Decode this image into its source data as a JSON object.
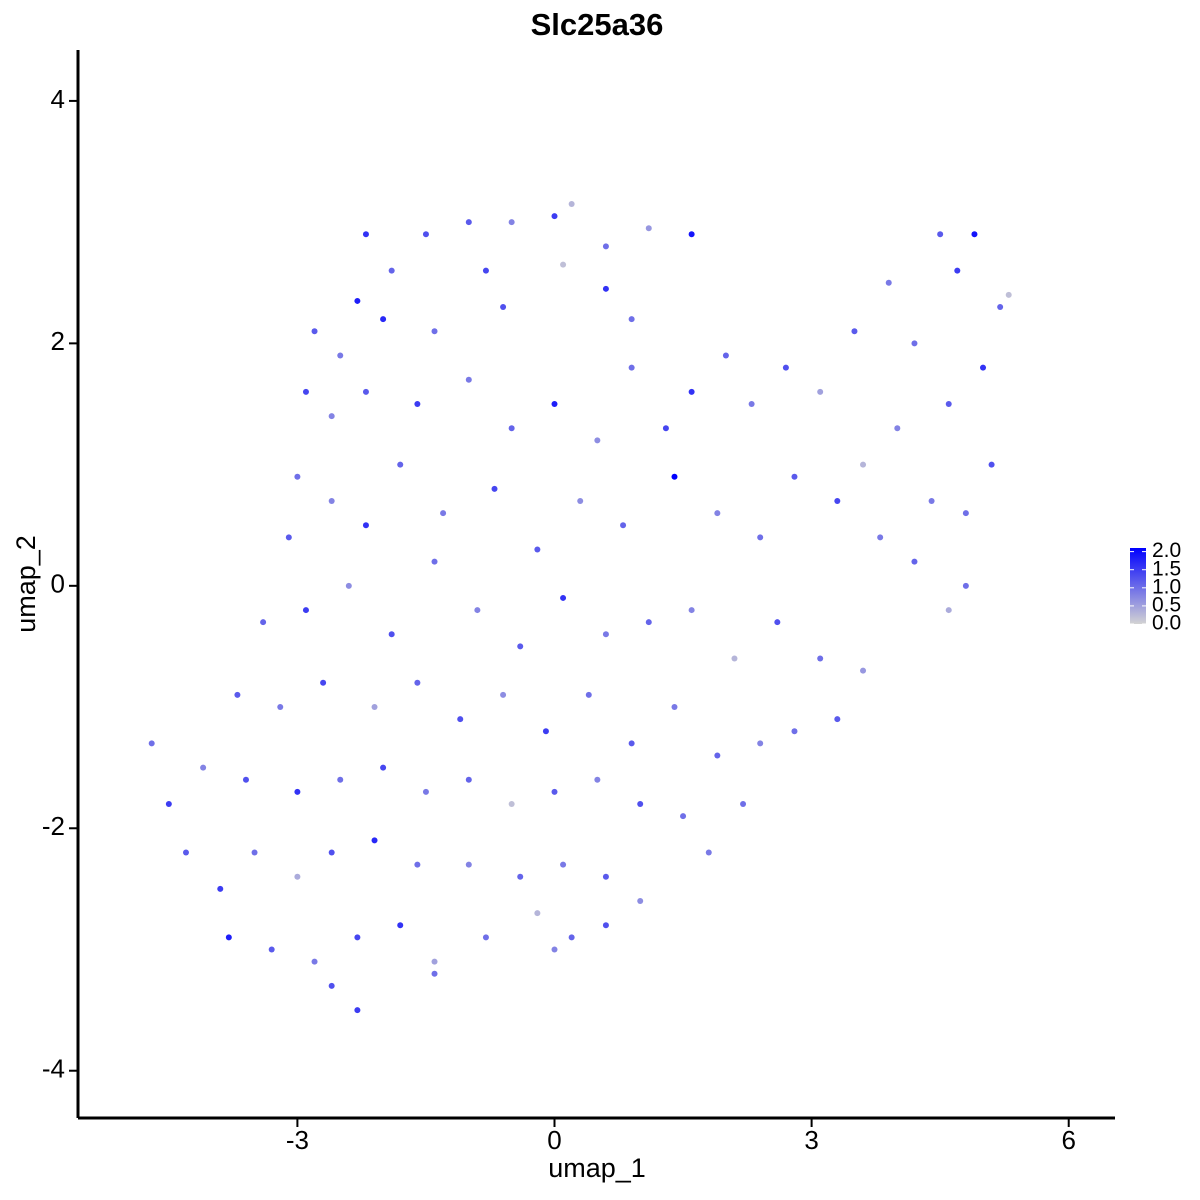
{
  "chart_data": {
    "type": "scatter",
    "title": "Slc25a36",
    "xlabel": "umap_1",
    "ylabel": "umap_2",
    "xlim": [
      -5.56,
      6.54
    ],
    "ylim": [
      -4.39,
      4.42
    ],
    "xticks": [
      -3,
      0,
      3,
      6
    ],
    "yticks": [
      -4,
      -2,
      0,
      2,
      4
    ],
    "low_color": "#d3d3d3",
    "high_color": "#0000ff",
    "colorlim": [
      0,
      2.1
    ],
    "colorticks": [
      {
        "value": 0,
        "label": "0.0"
      },
      {
        "value": 0.5,
        "label": "0.5"
      },
      {
        "value": 1,
        "label": "1.0"
      },
      {
        "value": 1.5,
        "label": "1.5"
      },
      {
        "value": 2,
        "label": "2.0"
      }
    ],
    "x": [
      -2.2,
      -1.5,
      -1.0,
      -0.5,
      0.0,
      0.2,
      0.6,
      1.1,
      1.6,
      0.1,
      -0.8,
      -1.9,
      -2.3,
      -2.8,
      -2.5,
      -2.0,
      -1.4,
      -0.6,
      0.6,
      0.9,
      -2.9,
      -2.6,
      -2.2,
      -1.6,
      -1.0,
      -0.5,
      0.0,
      0.5,
      0.9,
      1.3,
      1.6,
      2.0,
      2.3,
      2.7,
      3.1,
      3.5,
      3.9,
      4.2,
      4.5,
      4.7,
      4.9,
      5.2,
      5.3,
      5.0,
      4.6,
      4.0,
      3.6,
      5.1,
      4.8,
      4.4,
      -3.0,
      -3.1,
      -2.6,
      -2.2,
      -1.8,
      -1.3,
      -0.7,
      -0.2,
      0.3,
      0.8,
      1.4,
      1.9,
      2.4,
      2.8,
      3.3,
      3.8,
      4.2,
      4.8,
      4.6,
      -3.4,
      -2.9,
      -2.4,
      -1.9,
      -1.4,
      -0.9,
      -0.4,
      0.1,
      0.6,
      1.1,
      1.6,
      2.1,
      2.6,
      3.1,
      3.6,
      3.3,
      2.8,
      -3.7,
      -3.2,
      -2.7,
      -2.1,
      -1.6,
      -1.1,
      -0.6,
      -0.1,
      0.4,
      0.9,
      1.4,
      1.9,
      2.4,
      2.2,
      -4.7,
      -4.5,
      -4.1,
      -3.6,
      -3.0,
      -2.5,
      -2.0,
      -1.5,
      -1.0,
      -0.5,
      0.0,
      0.5,
      1.0,
      1.5,
      1.8,
      -4.3,
      -3.9,
      -3.5,
      -3.0,
      -2.6,
      -2.1,
      -1.6,
      -1.0,
      -0.4,
      0.1,
      0.6,
      1.0,
      -3.8,
      -3.3,
      -2.8,
      -2.3,
      -1.8,
      -1.4,
      -0.8,
      -0.2,
      0.2,
      0.6,
      -2.6,
      -2.3,
      -1.4,
      0.0
    ],
    "y": [
      2.9,
      2.9,
      3.0,
      3.0,
      3.05,
      3.15,
      2.8,
      2.95,
      2.9,
      2.65,
      2.6,
      2.6,
      2.35,
      2.1,
      1.9,
      2.2,
      2.1,
      2.3,
      2.45,
      2.2,
      1.6,
      1.4,
      1.6,
      1.5,
      1.7,
      1.3,
      1.5,
      1.2,
      1.8,
      1.3,
      1.6,
      1.9,
      1.5,
      1.8,
      1.6,
      2.1,
      2.5,
      2.0,
      2.9,
      2.6,
      2.9,
      2.3,
      2.4,
      1.8,
      1.5,
      1.3,
      1.0,
      1.0,
      0.6,
      0.7,
      0.9,
      0.4,
      0.7,
      0.5,
      1.0,
      0.6,
      0.8,
      0.3,
      0.7,
      0.5,
      0.9,
      0.6,
      0.4,
      0.9,
      0.7,
      0.4,
      0.2,
      0.0,
      -0.2,
      -0.3,
      -0.2,
      0.0,
      -0.4,
      0.2,
      -0.2,
      -0.5,
      -0.1,
      -0.4,
      -0.3,
      -0.2,
      -0.6,
      -0.3,
      -0.6,
      -0.7,
      -1.1,
      -1.2,
      -0.9,
      -1.0,
      -0.8,
      -1.0,
      -0.8,
      -1.1,
      -0.9,
      -1.2,
      -0.9,
      -1.3,
      -1.0,
      -1.4,
      -1.3,
      -1.8,
      -1.3,
      -1.8,
      -1.5,
      -1.6,
      -1.7,
      -1.6,
      -1.5,
      -1.7,
      -1.6,
      -1.8,
      -1.7,
      -1.6,
      -1.8,
      -1.9,
      -2.2,
      -2.2,
      -2.5,
      -2.2,
      -2.4,
      -2.2,
      -2.1,
      -2.3,
      -2.3,
      -2.4,
      -2.3,
      -2.4,
      -2.6,
      -2.9,
      -3.0,
      -3.1,
      -2.9,
      -2.8,
      -3.1,
      -2.9,
      -2.7,
      -2.9,
      -2.8,
      -3.3,
      -3.5,
      -3.2,
      -3.0
    ],
    "values": [
      1.6,
      1.3,
      1.2,
      0.8,
      1.5,
      0.3,
      1.0,
      0.6,
      1.9,
      0.2,
      1.4,
      1.1,
      1.8,
      1.2,
      0.9,
      1.7,
      1.0,
      1.3,
      1.6,
      1.0,
      1.4,
      0.8,
      1.2,
      1.5,
      0.9,
      1.1,
      1.8,
      0.7,
      1.0,
      1.4,
      1.6,
      1.1,
      0.9,
      1.3,
      0.5,
      1.2,
      0.9,
      1.0,
      1.2,
      1.5,
      1.9,
      1.1,
      0.2,
      1.6,
      1.2,
      0.8,
      0.3,
      1.3,
      1.0,
      0.9,
      1.0,
      1.2,
      0.8,
      1.6,
      1.1,
      0.9,
      1.4,
      1.2,
      0.7,
      1.1,
      2.1,
      0.8,
      1.0,
      1.2,
      1.4,
      0.9,
      1.1,
      1.0,
      0.4,
      1.1,
      1.5,
      0.7,
      1.3,
      1.0,
      0.8,
      1.2,
      1.6,
      0.9,
      1.1,
      0.8,
      0.3,
      1.3,
      1.0,
      0.6,
      1.2,
      1.0,
      1.2,
      0.9,
      1.4,
      0.5,
      1.1,
      1.3,
      0.7,
      1.5,
      1.0,
      1.2,
      0.9,
      1.1,
      0.8,
      1.0,
      1.0,
      1.5,
      0.8,
      1.3,
      1.6,
      1.0,
      1.4,
      0.9,
      1.1,
      0.2,
      1.2,
      0.8,
      1.3,
      1.0,
      0.9,
      1.2,
      1.5,
      1.0,
      0.4,
      1.3,
      1.7,
      1.0,
      0.8,
      1.1,
      0.9,
      1.2,
      0.7,
      1.8,
      1.2,
      0.9,
      1.4,
      1.6,
      0.5,
      1.0,
      0.3,
      1.1,
      1.3,
      1.3,
      1.5,
      1.0,
      0.8
    ]
  }
}
